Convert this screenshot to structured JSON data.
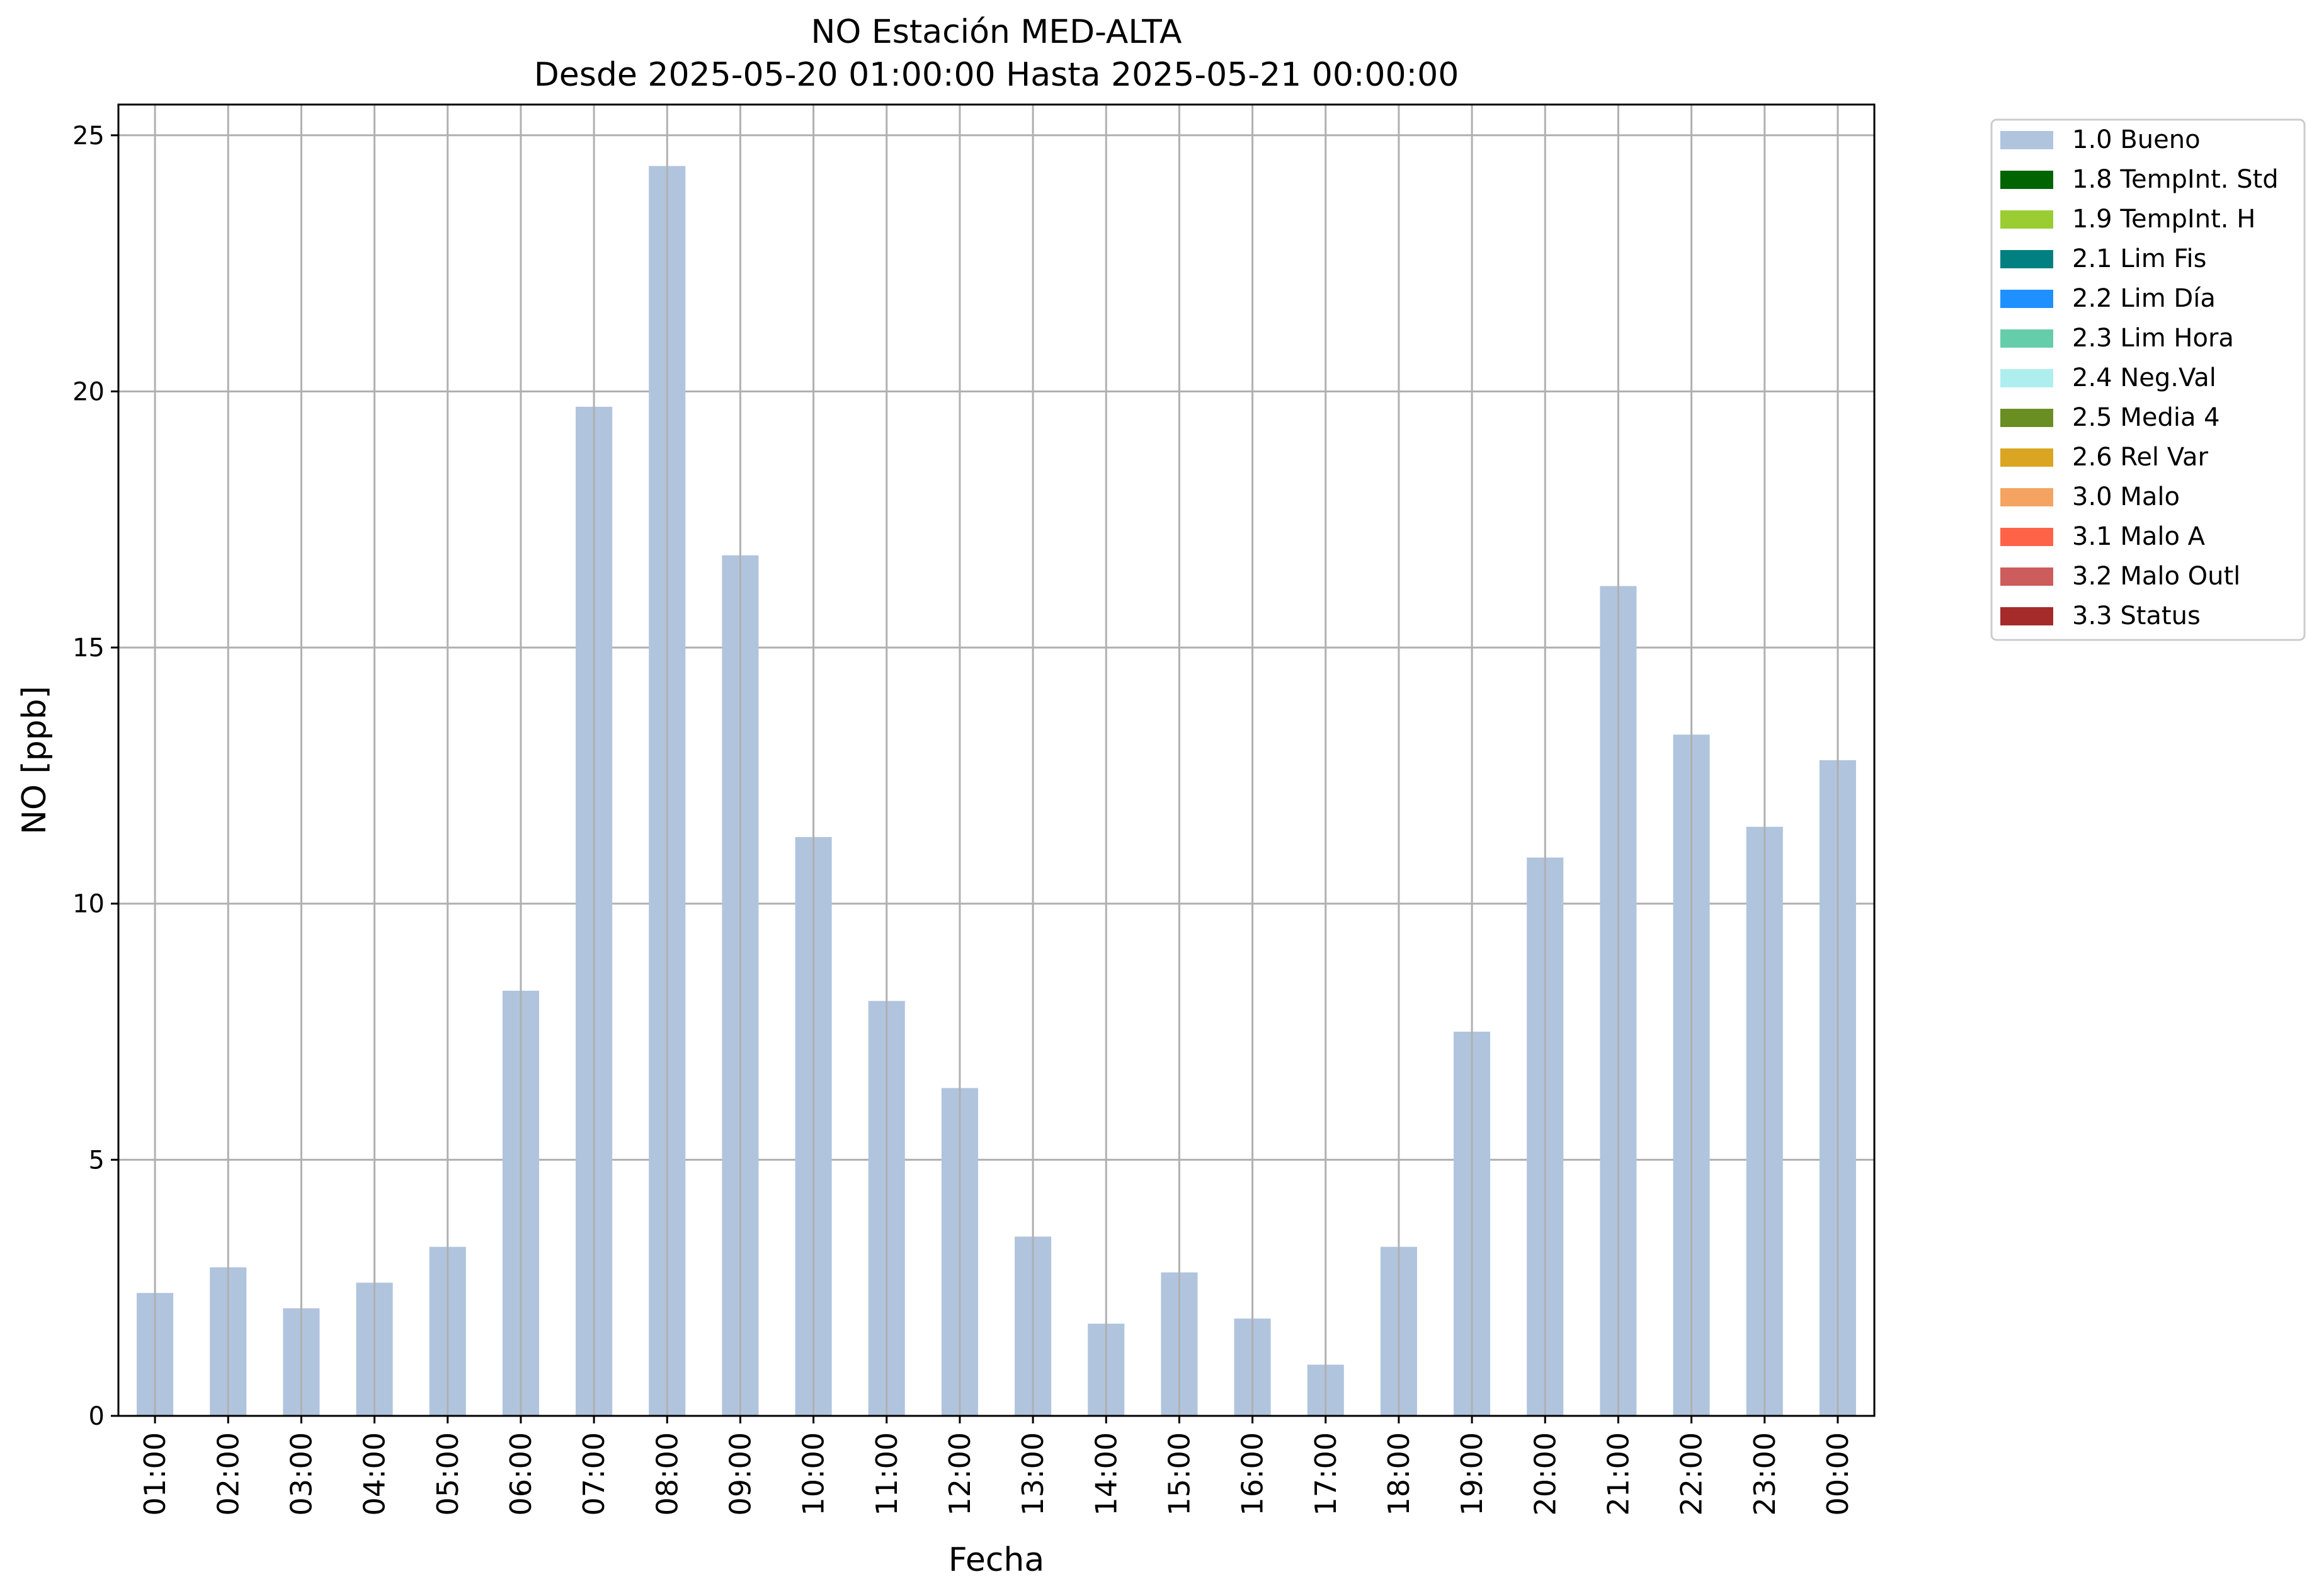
{
  "chart_data": {
    "type": "bar",
    "title": "NO Estación MED-ALTA",
    "subtitle": "Desde 2025-05-20 01:00:00 Hasta 2025-05-21 00:00:00",
    "xlabel": "Fecha",
    "ylabel": "NO [ppb]",
    "ylim": [
      0,
      25.6
    ],
    "yticks": [
      0,
      5,
      10,
      15,
      20,
      25
    ],
    "grid": true,
    "legend_position": "outside-top-right",
    "categories": [
      "01:00",
      "02:00",
      "03:00",
      "04:00",
      "05:00",
      "06:00",
      "07:00",
      "08:00",
      "09:00",
      "10:00",
      "11:00",
      "12:00",
      "13:00",
      "14:00",
      "15:00",
      "16:00",
      "17:00",
      "18:00",
      "19:00",
      "20:00",
      "21:00",
      "22:00",
      "23:00",
      "00:00"
    ],
    "series": [
      {
        "name": "1.0 Bueno",
        "color": "#b0c4de",
        "values": [
          2.4,
          2.9,
          2.1,
          2.6,
          3.3,
          8.3,
          19.7,
          24.4,
          16.8,
          11.3,
          8.1,
          6.4,
          3.5,
          1.8,
          2.8,
          1.9,
          1.0,
          3.3,
          7.5,
          10.9,
          16.2,
          13.3,
          11.5,
          12.8
        ]
      }
    ],
    "legend": [
      {
        "label": "1.0 Bueno",
        "color": "#b0c4de"
      },
      {
        "label": "1.8 TempInt. Std",
        "color": "#006400"
      },
      {
        "label": "1.9 TempInt. H",
        "color": "#9acd32"
      },
      {
        "label": "2.1 Lim Fis",
        "color": "#008080"
      },
      {
        "label": "2.2 Lim Día",
        "color": "#1e90ff"
      },
      {
        "label": "2.3 Lim Hora",
        "color": "#66cdaa"
      },
      {
        "label": "2.4 Neg.Val",
        "color": "#afeeee"
      },
      {
        "label": "2.5 Media 4",
        "color": "#6b8e23"
      },
      {
        "label": "2.6 Rel Var",
        "color": "#daa520"
      },
      {
        "label": "3.0 Malo",
        "color": "#f4a460"
      },
      {
        "label": "3.1 Malo A",
        "color": "#ff6347"
      },
      {
        "label": "3.2 Malo Outl",
        "color": "#cd5c5c"
      },
      {
        "label": "3.3 Status",
        "color": "#a52a2a"
      }
    ]
  }
}
